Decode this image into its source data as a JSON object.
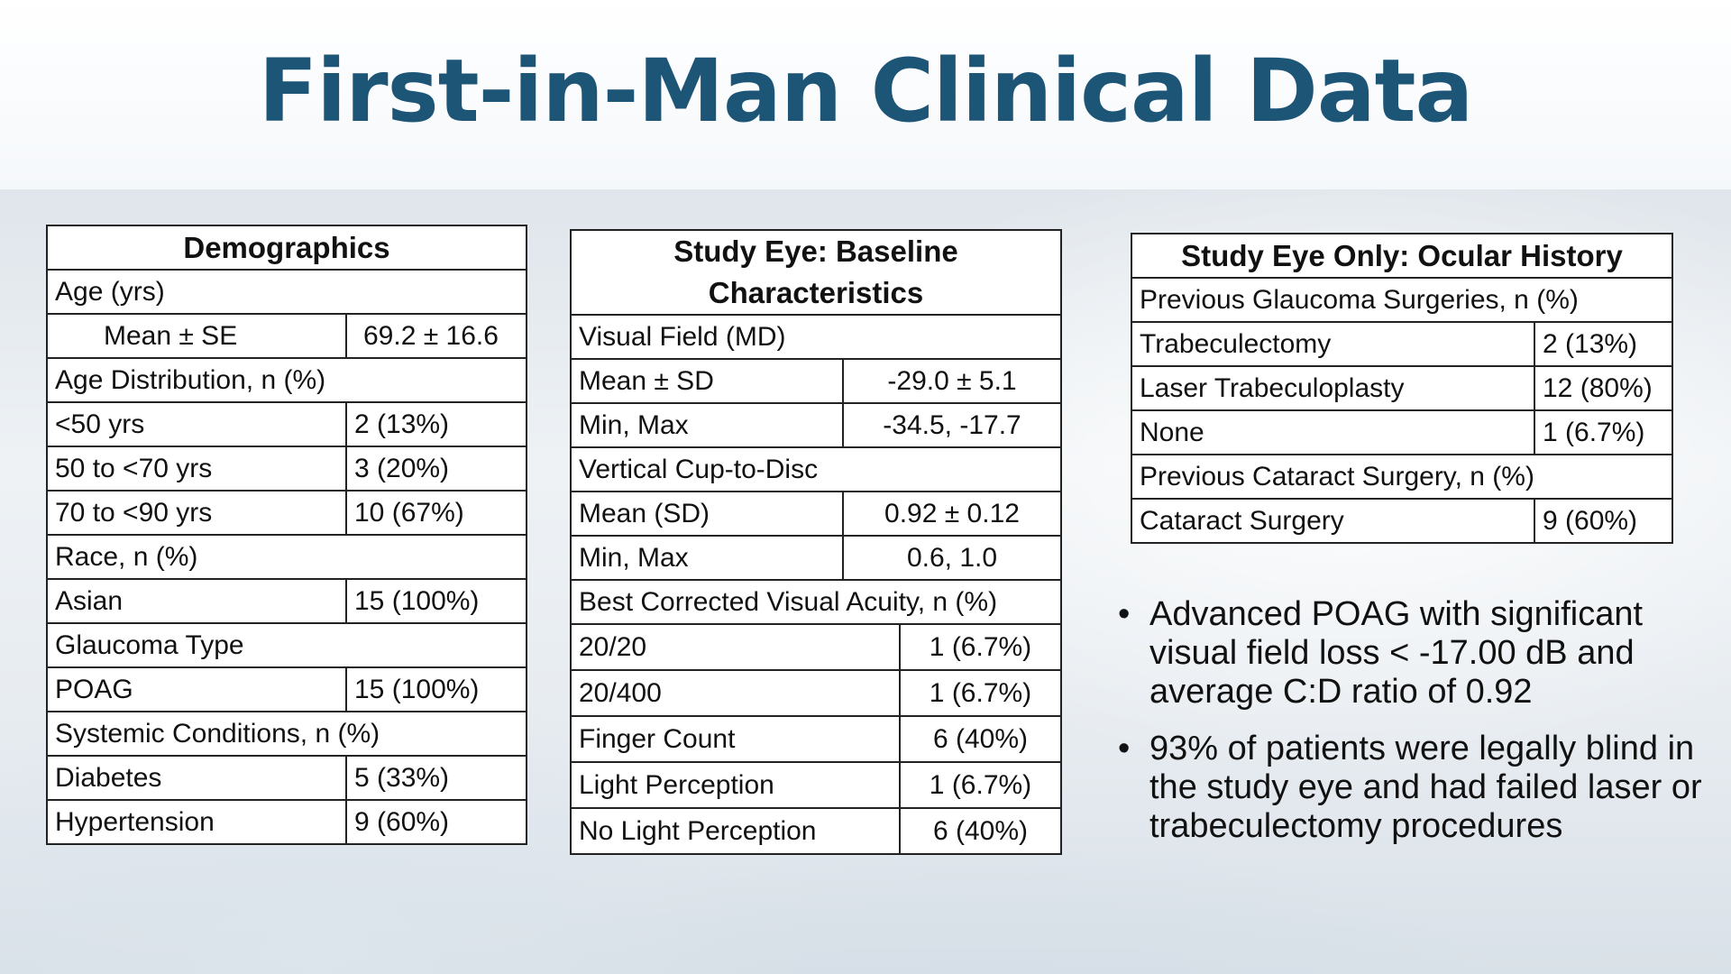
{
  "title": "First-in-Man Clinical Data",
  "demographics": {
    "header": "Demographics",
    "rows": [
      {
        "label": "Age (yrs)",
        "value": null
      },
      {
        "label": "Mean ± SE",
        "value": "69.2 ± 16.6"
      },
      {
        "label": "Age Distribution, n (%)",
        "value": null
      },
      {
        "label": "<50 yrs",
        "value": "2 (13%)"
      },
      {
        "label": "50 to <70 yrs",
        "value": "3 (20%)"
      },
      {
        "label": "70 to <90 yrs",
        "value": "10 (67%)"
      },
      {
        "label": "Race, n (%)",
        "value": null
      },
      {
        "label": "Asian",
        "value": "15 (100%)"
      },
      {
        "label": "Glaucoma Type",
        "value": null
      },
      {
        "label": "POAG",
        "value": "15 (100%)"
      },
      {
        "label": "Systemic Conditions, n (%)",
        "value": null
      },
      {
        "label": "Diabetes",
        "value": "5 (33%)"
      },
      {
        "label": "Hypertension",
        "value": "9 (60%)"
      }
    ]
  },
  "baseline": {
    "header_line1": "Study Eye: Baseline",
    "header_line2": "Characteristics",
    "rows": [
      {
        "label": "Visual Field (MD)",
        "value": null
      },
      {
        "label": "Mean ± SD",
        "value": "-29.0 ± 5.1"
      },
      {
        "label": "Min, Max",
        "value": "-34.5, -17.7"
      },
      {
        "label": "Vertical Cup-to-Disc",
        "value": null
      },
      {
        "label": "Mean (SD)",
        "value": "0.92 ± 0.12"
      },
      {
        "label": "Min, Max",
        "value": "0.6, 1.0"
      },
      {
        "label": "Best Corrected Visual Acuity, n (%)",
        "value": null
      },
      {
        "label": "20/20",
        "value": "1 (6.7%)"
      },
      {
        "label": "20/400",
        "value": "1 (6.7%)"
      },
      {
        "label": "Finger Count",
        "value": "6 (40%)"
      },
      {
        "label": "Light Perception",
        "value": "1 (6.7%)"
      },
      {
        "label": "No Light Perception",
        "value": "6 (40%)"
      }
    ]
  },
  "ocular_history": {
    "header": "Study Eye Only: Ocular History",
    "rows": [
      {
        "label": "Previous Glaucoma Surgeries, n (%)",
        "value": null
      },
      {
        "label": "Trabeculectomy",
        "value": "2 (13%)"
      },
      {
        "label": "Laser Trabeculoplasty",
        "value": "12 (80%)"
      },
      {
        "label": "None",
        "value": "1 (6.7%)"
      },
      {
        "label": "Previous Cataract Surgery, n (%)",
        "value": null
      },
      {
        "label": "Cataract Surgery",
        "value": "9 (60%)"
      }
    ]
  },
  "bullets": [
    "Advanced POAG with significant visual field loss < -17.00 dB and average C:D ratio of 0.92",
    "93% of patients were legally blind in the study eye and had failed laser or trabeculectomy procedures"
  ],
  "bullet_glyph": "•",
  "colors": {
    "title": "#1d5577"
  }
}
